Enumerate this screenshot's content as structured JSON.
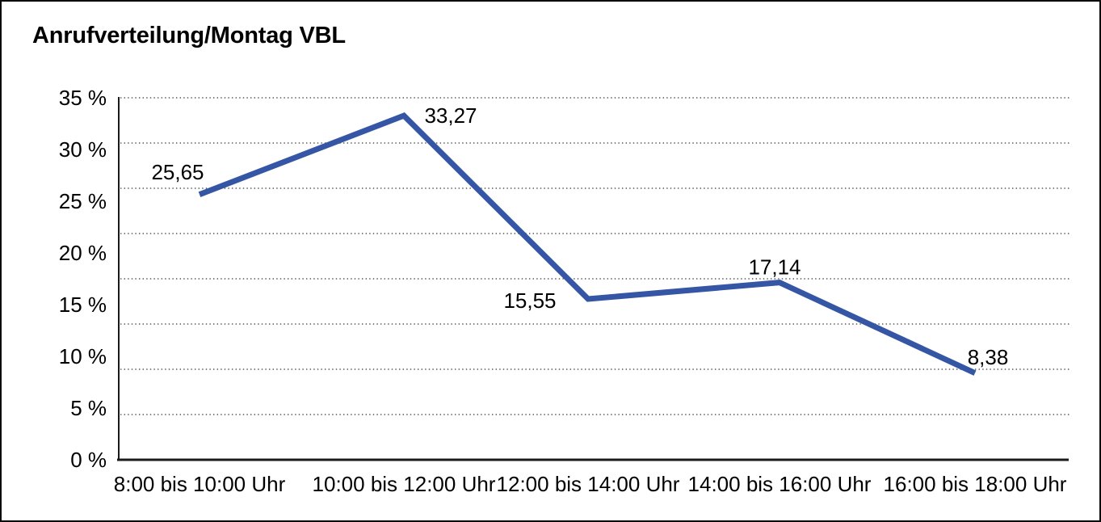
{
  "chart_data": {
    "type": "line",
    "title": "Anrufverteilung/Montag VBL",
    "categories": [
      "8:00 bis 10:00 Uhr",
      "10:00 bis 12:00 Uhr",
      "12:00 bis 14:00 Uhr",
      "14:00 bis 16:00 Uhr",
      "16:00 bis 18:00 Uhr"
    ],
    "values": [
      25.65,
      33.27,
      15.55,
      17.14,
      8.38
    ],
    "data_labels": [
      "25,65",
      "33,27",
      "15,55",
      "17,14",
      "8,38"
    ],
    "xlabel": "",
    "ylabel": "",
    "ylim": [
      0,
      35
    ],
    "ytick_step": 5,
    "ytick_labels": [
      "0 %",
      "5 %",
      "10 %",
      "15 %",
      "20 %",
      "25 %",
      "30 %",
      "35 %"
    ],
    "grid": {
      "horizontal": true,
      "style": "dotted",
      "dotted_intervals": 8
    },
    "legend": "none",
    "colors": {
      "line": "#3555A5",
      "text": "#000000",
      "axis": "#1a1a1a",
      "grid_dots": "#555555",
      "background": "#ffffff",
      "border": "#0a0a0a"
    }
  }
}
